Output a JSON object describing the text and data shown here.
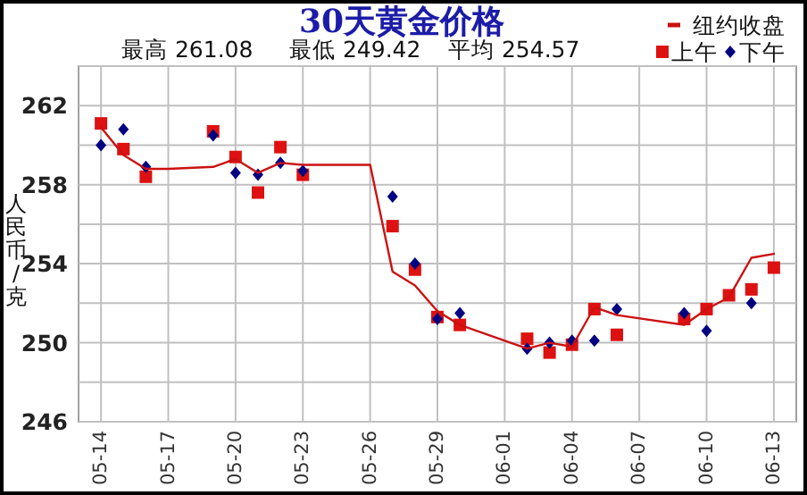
{
  "chart_data": {
    "type": "line",
    "title": "30天黄金价格",
    "ylabel": "人民币/克",
    "annotations": [
      "最高 261.08",
      "最低 249.42",
      "平均 254.57"
    ],
    "xlim": [
      "--05-13",
      "--06-14"
    ],
    "ylim": [
      246,
      264
    ],
    "xticks": [
      {
        "value": "--05-14",
        "label": "05-14"
      },
      {
        "value": "--05-17",
        "label": "05-17"
      },
      {
        "value": "--05-20",
        "label": "05-20"
      },
      {
        "value": "--05-23",
        "label": "05-23"
      },
      {
        "value": "--05-26",
        "label": "05-26"
      },
      {
        "value": "--05-29",
        "label": "05-29"
      },
      {
        "value": "--06-01",
        "label": "06-01"
      },
      {
        "value": "--06-04",
        "label": "06-04"
      },
      {
        "value": "--06-07",
        "label": "06-07"
      },
      {
        "value": "--06-10",
        "label": "06-10"
      },
      {
        "value": "--06-13",
        "label": "06-13"
      }
    ],
    "yticks": [
      246,
      {
        "value": 248,
        "label": null
      },
      250,
      {
        "value": 252,
        "label": null
      },
      254,
      {
        "value": 256,
        "label": null
      },
      258,
      {
        "value": 260,
        "label": null
      },
      262,
      {
        "value": 264,
        "label": null
      }
    ],
    "grid": true,
    "legend": "top right",
    "series": [
      {
        "name": "纽约收盘",
        "color": "#cc1111",
        "marker": "none",
        "line_style": "solid",
        "x": [
          "--05-14",
          "--05-15",
          "--05-16",
          "--05-17",
          "--05-19",
          "--05-20",
          "--05-21",
          "--05-22",
          "--05-23",
          "--05-26",
          "--05-27",
          "--05-28",
          "--05-29",
          "--05-30",
          "--06-02",
          "--06-03",
          "--06-04",
          "--06-05",
          "--06-06",
          "--06-09",
          "--06-10",
          "--06-11",
          "--06-12",
          "--06-13"
        ],
        "values": [
          260.9,
          259.5,
          258.8,
          258.8,
          258.9,
          259.3,
          258.6,
          259.1,
          259.0,
          259.0,
          253.6,
          252.9,
          251.6,
          250.9,
          249.7,
          250.0,
          249.8,
          251.8,
          251.4,
          250.9,
          251.7,
          252.3,
          254.3,
          254.5
        ]
      },
      {
        "name": "上午",
        "type": "scatter",
        "color": "#dd1111",
        "marker": "square",
        "x": [
          "--05-14",
          "--05-15",
          "--05-16",
          "--05-19",
          "--05-20",
          "--05-21",
          "--05-22",
          "--05-23",
          "--05-27",
          "--05-28",
          "--05-29",
          "--05-30",
          "--06-02",
          "--06-03",
          "--06-04",
          "--06-05",
          "--06-06",
          "--06-09",
          "--06-10",
          "--06-11",
          "--06-12",
          "--06-13"
        ],
        "values": [
          261.1,
          259.8,
          258.4,
          260.7,
          259.4,
          257.6,
          259.9,
          258.5,
          255.9,
          253.7,
          251.3,
          250.9,
          250.2,
          249.5,
          249.9,
          251.7,
          250.4,
          251.2,
          251.7,
          252.4,
          252.7,
          253.8
        ]
      },
      {
        "name": "下午",
        "type": "scatter",
        "color": "#000080",
        "marker": "diamond",
        "x": [
          "--05-14",
          "--05-15",
          "--05-16",
          "--05-19",
          "--05-20",
          "--05-21",
          "--05-22",
          "--05-23",
          "--05-27",
          "--05-28",
          "--05-29",
          "--05-30",
          "--06-02",
          "--06-03",
          "--06-04",
          "--06-05",
          "--06-06",
          "--06-09",
          "--06-10",
          "--06-12"
        ],
        "values": [
          260.0,
          260.8,
          258.9,
          260.5,
          258.6,
          258.5,
          259.1,
          258.7,
          257.4,
          254.0,
          251.2,
          251.5,
          249.7,
          250.0,
          250.1,
          250.1,
          251.7,
          251.5,
          250.6,
          252.0
        ]
      }
    ]
  }
}
